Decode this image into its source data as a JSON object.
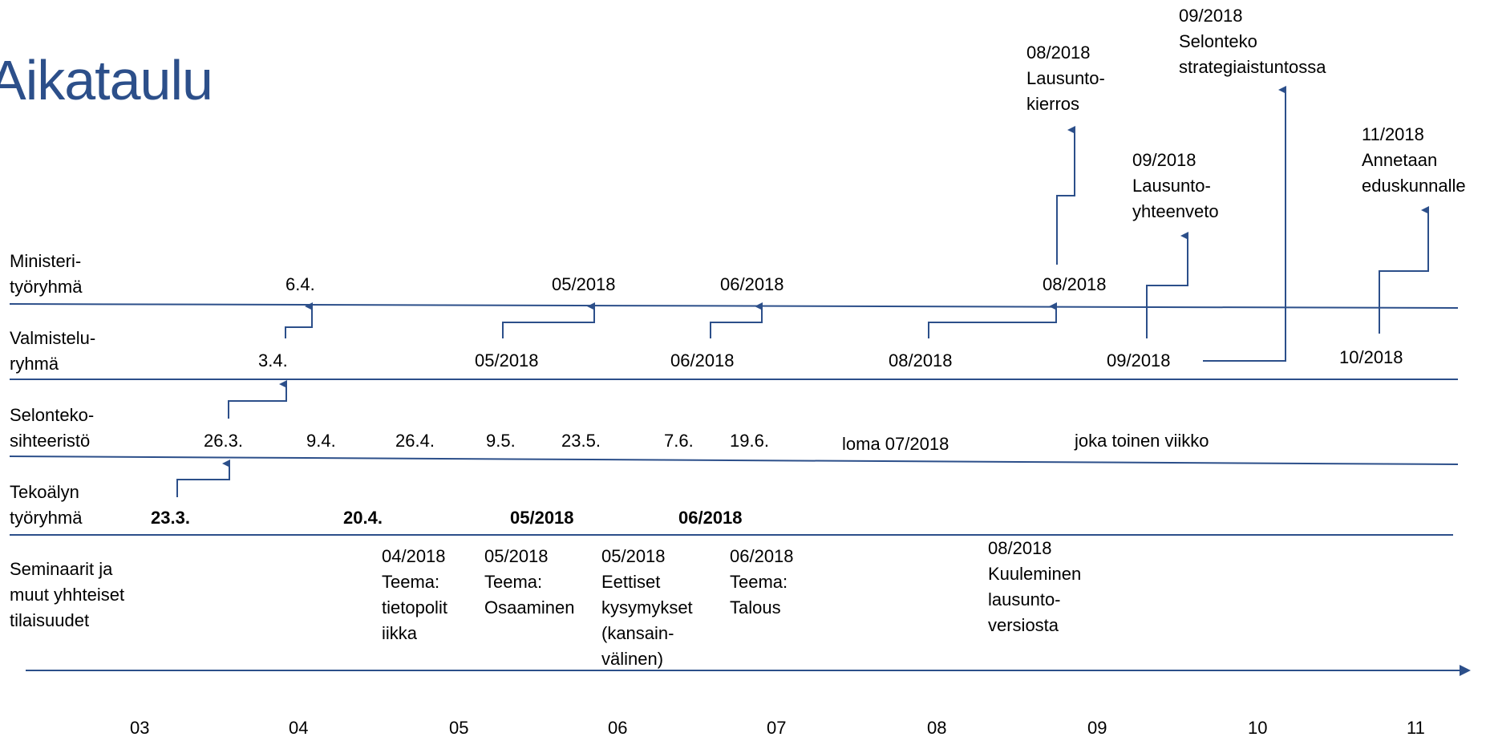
{
  "title": "Aikataulu",
  "colors": {
    "title": "#2c4f8a",
    "lines": "#2c4f8a",
    "arrows": "#2c4f8a"
  },
  "rows": [
    {
      "label_lines": [
        "Ministeri-",
        "työryhmä"
      ]
    },
    {
      "label_lines": [
        "Valmistelu-",
        "ryhmä"
      ]
    },
    {
      "label_lines": [
        "Selonteko-",
        "sihteeristö"
      ]
    },
    {
      "label_lines": [
        "Tekoälyn",
        "työryhmä"
      ]
    },
    {
      "label_lines": [
        "Seminaarit ja",
        "muut yhhteiset",
        "tilaisuudet"
      ]
    }
  ],
  "ministeri_dates": [
    "6.4.",
    "05/2018",
    "06/2018",
    "08/2018"
  ],
  "valmistelu_dates": [
    "3.4.",
    "05/2018",
    "06/2018",
    "08/2018",
    "09/2018",
    "10/2018"
  ],
  "sihteeristo_dates": [
    "26.3.",
    "9.4.",
    "26.4.",
    "9.5.",
    "23.5.",
    "7.6.",
    "19.6.",
    "loma 07/2018",
    "joka toinen viikko"
  ],
  "tekoaly_dates": [
    "23.3.",
    "20.4.",
    "05/2018",
    "06/2018"
  ],
  "seminars": [
    {
      "lines": [
        "04/2018",
        "Teema:",
        "tietopolit",
        "iikka"
      ]
    },
    {
      "lines": [
        "05/2018",
        "Teema:",
        "Osaaminen"
      ]
    },
    {
      "lines": [
        "05/2018",
        "Eettiset",
        "kysymykset",
        "(kansain-",
        "välinen)"
      ]
    },
    {
      "lines": [
        "06/2018",
        "Teema:",
        "Talous"
      ]
    },
    {
      "lines": [
        "08/2018",
        "Kuuleminen",
        "lausunto-",
        "versiosta"
      ]
    }
  ],
  "milestones": [
    {
      "lines": [
        "08/2018",
        "Lausunto-",
        "kierros"
      ]
    },
    {
      "lines": [
        "09/2018",
        "Selonteko",
        "strategiaistuntossa"
      ]
    },
    {
      "lines": [
        "09/2018",
        "Lausunto-",
        "yhteenveto"
      ]
    },
    {
      "lines": [
        "11/2018",
        "Annetaan",
        "eduskunnalle"
      ]
    }
  ],
  "months": [
    "03",
    "04",
    "05",
    "06",
    "07",
    "08",
    "09",
    "10",
    "11"
  ]
}
